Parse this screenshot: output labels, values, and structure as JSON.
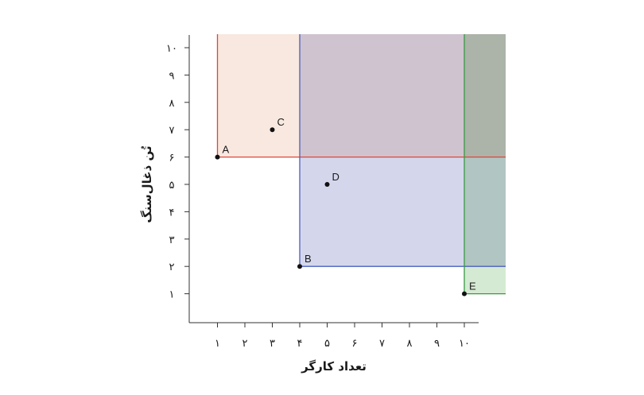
{
  "chart_data": {
    "type": "scatter",
    "xlabel": "تعداد کارگر",
    "ylabel": "تُن ذغال‌سنگ",
    "xlim": [
      0,
      10.5
    ],
    "ylim": [
      0,
      10.5
    ],
    "x_ticks": [
      {
        "value": 1,
        "label": "۱"
      },
      {
        "value": 2,
        "label": "۲"
      },
      {
        "value": 3,
        "label": "۳"
      },
      {
        "value": 4,
        "label": "۴"
      },
      {
        "value": 5,
        "label": "۵"
      },
      {
        "value": 6,
        "label": "۶"
      },
      {
        "value": 7,
        "label": "۷"
      },
      {
        "value": 8,
        "label": "۸"
      },
      {
        "value": 9,
        "label": "۹"
      },
      {
        "value": 10,
        "label": "۱۰"
      }
    ],
    "y_ticks": [
      {
        "value": 1,
        "label": "۱"
      },
      {
        "value": 2,
        "label": "۲"
      },
      {
        "value": 3,
        "label": "۳"
      },
      {
        "value": 4,
        "label": "۴"
      },
      {
        "value": 5,
        "label": "۵"
      },
      {
        "value": 6,
        "label": "۶"
      },
      {
        "value": 7,
        "label": "۷"
      },
      {
        "value": 8,
        "label": "۸"
      },
      {
        "value": 9,
        "label": "۹"
      },
      {
        "value": 10,
        "label": "۱۰"
      }
    ],
    "points": [
      {
        "label": "A",
        "x": 1,
        "y": 6
      },
      {
        "label": "B",
        "x": 4,
        "y": 2
      },
      {
        "label": "C",
        "x": 3,
        "y": 7
      },
      {
        "label": "D",
        "x": 5,
        "y": 5
      },
      {
        "label": "E",
        "x": 10,
        "y": 1
      }
    ],
    "regions": [
      {
        "corner": "A",
        "x": 1,
        "y": 6,
        "line_color": "#e0453a",
        "fill_color": "#f3d9c9"
      },
      {
        "corner": "B",
        "x": 4,
        "y": 2,
        "line_color": "#4a5fbf",
        "fill_color": "#b7bde0"
      },
      {
        "corner": "E",
        "x": 10,
        "y": 1,
        "line_color": "#3a9a45",
        "fill_color": "#b9dcb4"
      }
    ],
    "grid": false,
    "legend": "none"
  }
}
